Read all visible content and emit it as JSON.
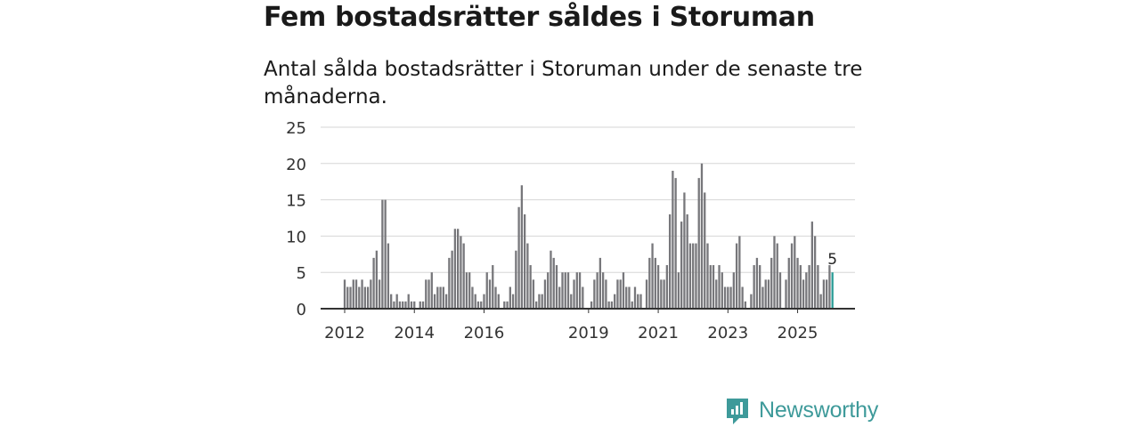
{
  "header": {
    "title": "Fem bostadsrätter såldes i Storuman",
    "subtitle": "Antal sålda bostadsrätter i Storuman under de senaste tre månaderna."
  },
  "brand": {
    "name": "Newsworthy",
    "icon": "newsworthy-chart-icon",
    "color": "#3e9a9a"
  },
  "colors": {
    "bar": "#77777b",
    "highlight": "#2a9d97",
    "grid": "#d6d6d6",
    "axis": "#333333"
  },
  "chart_data": {
    "type": "bar",
    "title": "Fem bostadsrätter såldes i Storuman",
    "subtitle": "Antal sålda bostadsrätter i Storuman under de senaste tre månaderna.",
    "xlabel": "",
    "ylabel": "",
    "ylim": [
      0,
      25
    ],
    "yticks": [
      0,
      5,
      10,
      15,
      20,
      25
    ],
    "grid": true,
    "first_month": "2012-01",
    "xticks": [
      {
        "label": "2012",
        "index": 0
      },
      {
        "label": "2014",
        "index": 24
      },
      {
        "label": "2016",
        "index": 48
      },
      {
        "label": "2019",
        "index": 84
      },
      {
        "label": "2021",
        "index": 108
      },
      {
        "label": "2023",
        "index": 132
      },
      {
        "label": "2025",
        "index": 156
      }
    ],
    "values": [
      4,
      3,
      3,
      4,
      4,
      3,
      4,
      3,
      3,
      4,
      7,
      8,
      4,
      15,
      15,
      9,
      2,
      1,
      2,
      1,
      1,
      1,
      2,
      1,
      1,
      0,
      1,
      1,
      4,
      4,
      5,
      2,
      3,
      3,
      3,
      2,
      7,
      8,
      11,
      11,
      10,
      9,
      5,
      5,
      3,
      2,
      1,
      1,
      2,
      5,
      4,
      6,
      3,
      2,
      0,
      1,
      1,
      3,
      2,
      8,
      14,
      17,
      13,
      9,
      6,
      4,
      1,
      2,
      2,
      4,
      5,
      8,
      7,
      6,
      3,
      5,
      5,
      5,
      2,
      4,
      5,
      5,
      3,
      0,
      0,
      1,
      4,
      5,
      7,
      5,
      4,
      1,
      1,
      2,
      4,
      4,
      5,
      3,
      3,
      1,
      3,
      2,
      2,
      0,
      4,
      7,
      9,
      7,
      6,
      4,
      4,
      6,
      13,
      19,
      18,
      5,
      12,
      16,
      13,
      9,
      9,
      9,
      18,
      20,
      16,
      9,
      6,
      6,
      4,
      6,
      5,
      3,
      3,
      3,
      5,
      9,
      10,
      3,
      1,
      0,
      2,
      6,
      7,
      6,
      3,
      4,
      4,
      7,
      10,
      9,
      5,
      0,
      4,
      7,
      9,
      10,
      7,
      6,
      4,
      5,
      6,
      12,
      10,
      6,
      2,
      4,
      4,
      6,
      5
    ],
    "highlight_index": 168,
    "annotations": [
      {
        "index": 168,
        "label": "5"
      }
    ]
  }
}
